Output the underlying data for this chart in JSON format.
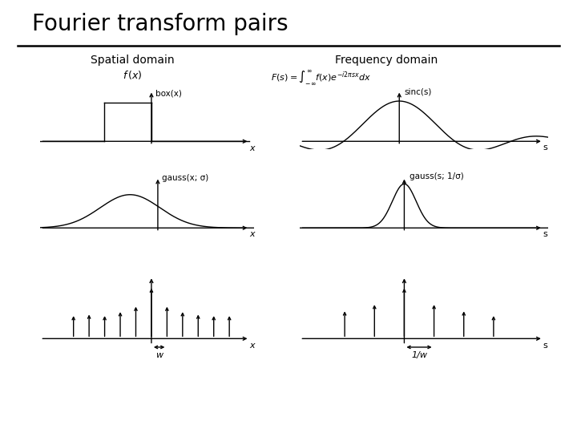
{
  "title": "Fourier transform pairs",
  "title_fontsize": 20,
  "bg_color": "#ffffff",
  "text_color": "#000000",
  "spatial_label": "Spatial domain",
  "freq_label": "Frequency domain",
  "box_label": "box(x)",
  "sinc_label": "sinc(s)",
  "gauss_x_label": "gauss(x; σ)",
  "gauss_s_label": "gauss(s; 1/σ)",
  "w_label": "w",
  "winv_label": "1/w",
  "line_color": "#000000",
  "line_width": 1.0
}
